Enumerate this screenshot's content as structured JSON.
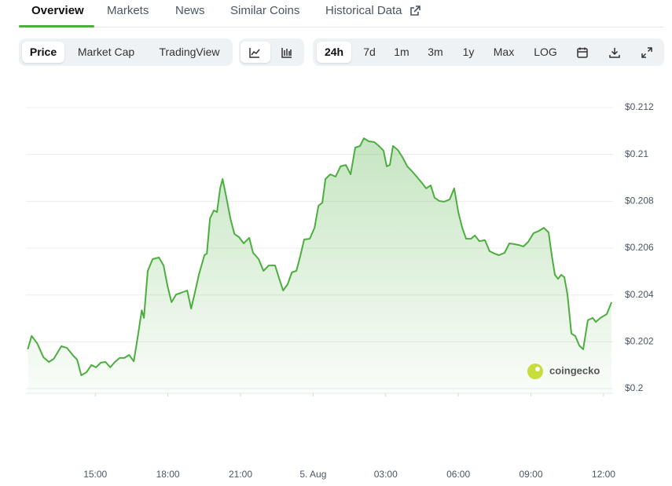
{
  "tabs": [
    "Overview",
    "Markets",
    "News",
    "Similar Coins",
    "Historical Data"
  ],
  "toolbar": {
    "views": [
      "Price",
      "Market Cap",
      "TradingView"
    ],
    "ranges": [
      "24h",
      "7d",
      "1m",
      "3m",
      "1y",
      "Max",
      "LOG"
    ]
  },
  "chart_data": {
    "type": "line",
    "watermark": "coingecko",
    "color": "#4cae3f",
    "grid": true,
    "x": [
      12.21,
      12.37,
      12.6,
      12.86,
      13.08,
      13.28,
      13.6,
      13.83,
      14.09,
      14.25,
      14.42,
      14.64,
      14.84,
      15.03,
      15.23,
      15.42,
      15.62,
      15.81,
      16.01,
      16.2,
      16.4,
      16.59,
      16.75,
      16.92,
      17.01,
      17.17,
      17.37,
      17.63,
      17.82,
      17.99,
      18.15,
      18.34,
      18.54,
      18.8,
      18.96,
      19.12,
      19.28,
      19.51,
      19.61,
      19.74,
      19.9,
      20.03,
      20.16,
      20.26,
      20.42,
      20.58,
      20.75,
      20.94,
      21.13,
      21.36,
      21.52,
      21.75,
      21.95,
      22.17,
      22.43,
      22.6,
      22.76,
      22.95,
      23.12,
      23.31,
      23.47,
      23.63,
      23.86,
      24.06,
      24.22,
      24.38,
      24.51,
      24.71,
      24.93,
      25.13,
      25.35,
      25.55,
      25.74,
      25.94,
      26.1,
      26.3,
      26.52,
      26.72,
      26.91,
      27.04,
      27.17,
      27.3,
      27.5,
      27.69,
      27.89,
      28.08,
      28.28,
      28.5,
      28.67,
      28.86,
      29.02,
      29.22,
      29.41,
      29.64,
      29.83,
      30.0,
      30.16,
      30.32,
      30.52,
      30.68,
      30.87,
      31.1,
      31.29,
      31.49,
      31.68,
      31.91,
      32.11,
      32.3,
      32.5,
      32.69,
      32.89,
      33.11,
      33.34,
      33.53,
      33.73,
      33.86,
      33.99,
      34.12,
      34.25,
      34.38,
      34.51,
      34.67,
      34.83,
      35.0,
      35.16,
      35.35,
      35.55,
      35.68,
      35.87,
      36.13,
      36.33
    ],
    "values": [
      0.20168,
      0.20225,
      0.20194,
      0.20134,
      0.20114,
      0.20127,
      0.20181,
      0.20174,
      0.20141,
      0.20124,
      0.20057,
      0.2007,
      0.20101,
      0.20091,
      0.20111,
      0.20114,
      0.20091,
      0.20114,
      0.20131,
      0.20131,
      0.20144,
      0.20117,
      0.20218,
      0.20335,
      0.20302,
      0.20503,
      0.20553,
      0.2056,
      0.20526,
      0.20436,
      0.20369,
      0.20402,
      0.20409,
      0.20419,
      0.20342,
      0.20412,
      0.20486,
      0.2057,
      0.20577,
      0.20727,
      0.20761,
      0.20754,
      0.20855,
      0.20895,
      0.20815,
      0.20727,
      0.2066,
      0.20647,
      0.2062,
      0.20644,
      0.2058,
      0.20553,
      0.20503,
      0.20526,
      0.20526,
      0.20469,
      0.20419,
      0.20446,
      0.20496,
      0.20503,
      0.20567,
      0.20637,
      0.2064,
      0.20687,
      0.20781,
      0.20794,
      0.20895,
      0.20915,
      0.20905,
      0.20949,
      0.20955,
      0.20915,
      0.21029,
      0.21036,
      0.21069,
      0.21056,
      0.21053,
      0.21036,
      0.21016,
      0.20949,
      0.20955,
      0.21036,
      0.21019,
      0.20989,
      0.20949,
      0.20929,
      0.20905,
      0.20878,
      0.20855,
      0.20868,
      0.20815,
      0.20801,
      0.20798,
      0.20808,
      0.20855,
      0.20754,
      0.20687,
      0.2064,
      0.2064,
      0.20654,
      0.2063,
      0.20634,
      0.20587,
      0.20577,
      0.2057,
      0.2058,
      0.2062,
      0.20617,
      0.20613,
      0.20607,
      0.20627,
      0.20664,
      0.20674,
      0.20687,
      0.20667,
      0.2057,
      0.20486,
      0.20469,
      0.20486,
      0.20476,
      0.20402,
      0.20235,
      0.20225,
      0.20184,
      0.20168,
      0.20292,
      0.20302,
      0.20285,
      0.20302,
      0.20318,
      0.20369
    ],
    "xlim": [
      12.2,
      36.36
    ],
    "xticks": [
      {
        "value": 15,
        "label": "15:00"
      },
      {
        "value": 18,
        "label": "18:00"
      },
      {
        "value": 21,
        "label": "21:00"
      },
      {
        "value": 24,
        "label": "5. Aug"
      },
      {
        "value": 27,
        "label": "03:00"
      },
      {
        "value": 30,
        "label": "06:00"
      },
      {
        "value": 33,
        "label": "09:00"
      },
      {
        "value": 36,
        "label": "12:00"
      }
    ],
    "ylim": [
      0.1998,
      0.212
    ],
    "yticks": [
      {
        "value": 0.2,
        "label": "$0.2"
      },
      {
        "value": 0.202,
        "label": "$0.202"
      },
      {
        "value": 0.204,
        "label": "$0.204"
      },
      {
        "value": 0.206,
        "label": "$0.206"
      },
      {
        "value": 0.208,
        "label": "$0.208"
      },
      {
        "value": 0.21,
        "label": "$0.21"
      },
      {
        "value": 0.212,
        "label": "$0.212"
      }
    ]
  }
}
